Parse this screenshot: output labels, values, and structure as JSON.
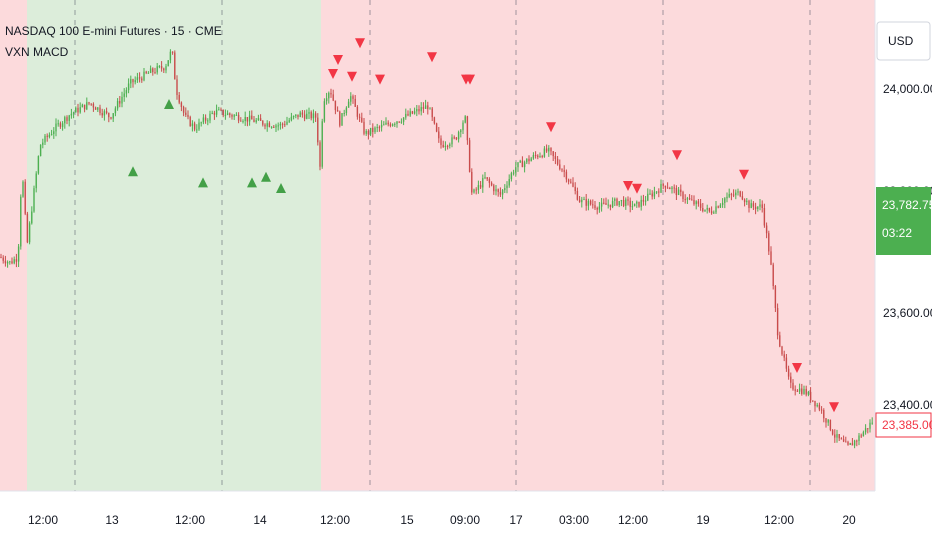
{
  "header": {
    "symbol_line": "NASDAQ 100 E-mini Futures · 15 · CME",
    "indicator_line": "VXN MACD"
  },
  "currency": "USD",
  "y_axis": {
    "labels": [
      "24,000.00",
      "23,600.00"
    ],
    "partially_hidden_labels": [
      "23,800.00",
      "23,400.00"
    ]
  },
  "last_price": {
    "value": "23,782.75",
    "countdown": "03:22",
    "color": "#4caf50"
  },
  "marked_price": {
    "value": "23,385.00",
    "color": "#f23645"
  },
  "colors": {
    "bull_bg": "#dcedda",
    "bear_bg": "#fcdadc",
    "up_candle": "#4caf50",
    "down_candle": "#c94b4b",
    "buy_marker": "#43a047",
    "sell_marker": "#f23645"
  },
  "x_axis": {
    "ticks": [
      {
        "label": "12:00",
        "x": 43
      },
      {
        "label": "13",
        "x": 112
      },
      {
        "label": "12:00",
        "x": 190
      },
      {
        "label": "14",
        "x": 260
      },
      {
        "label": "12:00",
        "x": 335
      },
      {
        "label": "15",
        "x": 407
      },
      {
        "label": "09:00",
        "x": 465
      },
      {
        "label": "17",
        "x": 516
      },
      {
        "label": "03:00",
        "x": 574
      },
      {
        "label": "12:00",
        "x": 633
      },
      {
        "label": "19",
        "x": 703
      },
      {
        "label": "12:00",
        "x": 779
      },
      {
        "label": "20",
        "x": 849
      }
    ]
  },
  "chart_data": {
    "type": "candlestick",
    "title": "NASDAQ 100 E-mini Futures · 15 · CME",
    "indicator": "VXN MACD",
    "ylim": [
      23320,
      24100
    ],
    "y_ticks": [
      23400,
      23600,
      23800,
      24000
    ],
    "day_separators": [
      "13",
      "14",
      "15",
      "17",
      "19",
      "20"
    ],
    "regimes": [
      {
        "state": "bear",
        "x0": 0,
        "x1": 27
      },
      {
        "state": "bull",
        "x0": 27,
        "x1": 321
      },
      {
        "state": "bear",
        "x0": 321,
        "x1": 875
      }
    ],
    "price_path": [
      [
        0,
        23700
      ],
      [
        10,
        23690
      ],
      [
        18,
        23700
      ],
      [
        22,
        23860
      ],
      [
        27,
        23720
      ],
      [
        32,
        23790
      ],
      [
        40,
        23900
      ],
      [
        55,
        23930
      ],
      [
        70,
        23955
      ],
      [
        90,
        23975
      ],
      [
        110,
        23950
      ],
      [
        130,
        24010
      ],
      [
        150,
        24030
      ],
      [
        165,
        24040
      ],
      [
        172,
        24070
      ],
      [
        176,
        24000
      ],
      [
        185,
        23950
      ],
      [
        195,
        23930
      ],
      [
        215,
        23960
      ],
      [
        240,
        23950
      ],
      [
        262,
        23940
      ],
      [
        280,
        23935
      ],
      [
        300,
        23955
      ],
      [
        316,
        23950
      ],
      [
        320,
        23860
      ],
      [
        323,
        23980
      ],
      [
        330,
        24000
      ],
      [
        340,
        23940
      ],
      [
        350,
        23990
      ],
      [
        365,
        23920
      ],
      [
        385,
        23935
      ],
      [
        405,
        23950
      ],
      [
        428,
        23970
      ],
      [
        440,
        23900
      ],
      [
        455,
        23910
      ],
      [
        465,
        23950
      ],
      [
        472,
        23810
      ],
      [
        485,
        23840
      ],
      [
        500,
        23810
      ],
      [
        515,
        23860
      ],
      [
        535,
        23880
      ],
      [
        548,
        23890
      ],
      [
        565,
        23850
      ],
      [
        580,
        23800
      ],
      [
        600,
        23790
      ],
      [
        620,
        23800
      ],
      [
        635,
        23790
      ],
      [
        650,
        23810
      ],
      [
        665,
        23830
      ],
      [
        690,
        23800
      ],
      [
        710,
        23780
      ],
      [
        725,
        23805
      ],
      [
        740,
        23815
      ],
      [
        750,
        23790
      ],
      [
        762,
        23790
      ],
      [
        770,
        23700
      ],
      [
        778,
        23560
      ],
      [
        790,
        23470
      ],
      [
        805,
        23460
      ],
      [
        820,
        23430
      ],
      [
        835,
        23380
      ],
      [
        848,
        23360
      ],
      [
        860,
        23380
      ],
      [
        874,
        23410
      ]
    ],
    "buy_signals": [
      {
        "x": 133,
        "price": 23880
      },
      {
        "x": 169,
        "price": 24000
      },
      {
        "x": 203,
        "price": 23860
      },
      {
        "x": 252,
        "price": 23860
      },
      {
        "x": 266,
        "price": 23870
      },
      {
        "x": 281,
        "price": 23850
      }
    ],
    "sell_signals": [
      {
        "x": 333,
        "price": 24000
      },
      {
        "x": 338,
        "price": 24025
      },
      {
        "x": 352,
        "price": 23995
      },
      {
        "x": 360,
        "price": 24055
      },
      {
        "x": 380,
        "price": 23990
      },
      {
        "x": 432,
        "price": 24030
      },
      {
        "x": 466,
        "price": 23990
      },
      {
        "x": 470,
        "price": 23990
      },
      {
        "x": 551,
        "price": 23905
      },
      {
        "x": 628,
        "price": 23800
      },
      {
        "x": 637,
        "price": 23795
      },
      {
        "x": 677,
        "price": 23855
      },
      {
        "x": 744,
        "price": 23820
      },
      {
        "x": 797,
        "price": 23475
      },
      {
        "x": 834,
        "price": 23405
      }
    ]
  }
}
